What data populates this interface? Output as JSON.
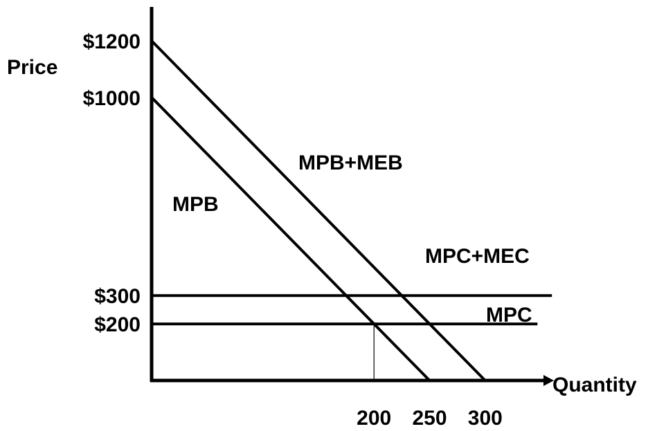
{
  "chart_data": {
    "type": "line",
    "title": "",
    "xlabel": "Quantity",
    "ylabel": "Price",
    "xlim": [
      0,
      360
    ],
    "ylim": [
      0,
      1380
    ],
    "y_ticks": [
      {
        "value": 1200,
        "label": "$1200"
      },
      {
        "value": 1000,
        "label": "$1000"
      },
      {
        "value": 300,
        "label": "$300"
      },
      {
        "value": 200,
        "label": "$200"
      }
    ],
    "x_ticks": [
      {
        "value": 200,
        "label": "200"
      },
      {
        "value": 250,
        "label": "250"
      },
      {
        "value": 300,
        "label": "300"
      }
    ],
    "series": [
      {
        "name": "MPB+MEB",
        "points": [
          [
            0,
            1200
          ],
          [
            300,
            0
          ]
        ]
      },
      {
        "name": "MPB",
        "points": [
          [
            0,
            1000
          ],
          [
            250,
            0
          ]
        ]
      },
      {
        "name": "MPC+MEC",
        "points": [
          [
            0,
            300
          ],
          [
            360,
            300
          ]
        ]
      },
      {
        "name": "MPC",
        "points": [
          [
            0,
            200
          ],
          [
            347,
            200
          ]
        ]
      }
    ],
    "reference_lines": [
      {
        "points": [
          [
            200,
            0
          ],
          [
            200,
            200
          ]
        ]
      }
    ],
    "grid": false,
    "legend": "labels on lines",
    "colors": {
      "line": "#000000",
      "background": "#ffffff"
    }
  }
}
